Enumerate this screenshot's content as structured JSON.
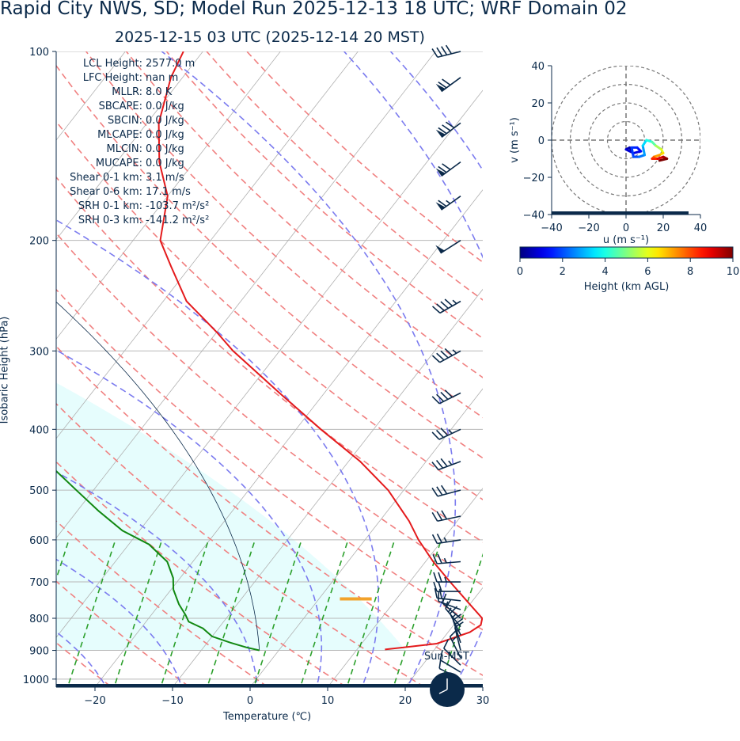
{
  "header": {
    "title": "Rapid City NWS, SD; Model Run 2025-12-13 18 UTC; WRF Domain 02",
    "subtitle": "2025-12-15 03 UTC  (2025-12-14 20 MST)"
  },
  "stats": [
    {
      "label": "LCL Height:",
      "value": "2577.0 m"
    },
    {
      "label": "LFC Height:",
      "value": "nan m"
    },
    {
      "label": "MLLR:",
      "value": "8.0 K"
    },
    {
      "label": "SBCAPE:",
      "value": "0.0 J/kg"
    },
    {
      "label": "SBCIN:",
      "value": "0.0 J/kg"
    },
    {
      "label": "MLCAPE:",
      "value": "0.0 J/kg"
    },
    {
      "label": "MLCIN:",
      "value": "0.0 J/kg"
    },
    {
      "label": "MUCAPE:",
      "value": "0.0 J/kg"
    },
    {
      "label": "Shear 0-1 km:",
      "value": "3.1 m/s"
    },
    {
      "label": "Shear 0-6 km:",
      "value": "17.1 m/s"
    },
    {
      "label": "SRH 0-1 km:",
      "value": "-103.7 m²/s²"
    },
    {
      "label": "SRH 0-3 km:",
      "value": "-141.2 m²/s²"
    }
  ],
  "sun_label": "Sun-MST",
  "colors": {
    "temperature": "#e41a1c",
    "dewpoint": "#118811",
    "dry_adiabat": "#f08080",
    "moist_adiabat": "#7b7bef",
    "mixing_ratio": "#2ca02c",
    "cloud_fill": "#e6fdfd",
    "isotherm": "#b0b0b0",
    "barb": "#0b2a4a",
    "lcl_marker": "#f2a22a"
  },
  "chart_data": [
    {
      "type": "skew-t",
      "xlabel": "Temperature (℃)",
      "ylabel": "Isobaric Height (hPa)",
      "xlim": [
        -25,
        30
      ],
      "ylim": [
        1030,
        100
      ],
      "log_y": true,
      "xticks": [
        -20,
        -10,
        0,
        10,
        20,
        30
      ],
      "yticks": [
        100,
        200,
        300,
        400,
        500,
        600,
        700,
        800,
        900,
        1000
      ],
      "grid": true,
      "temperature": {
        "p": [
          897,
          878,
          842,
          820,
          800,
          760,
          700,
          650,
          600,
          560,
          500,
          450,
          400,
          350,
          300,
          280,
          250,
          220,
          200,
          170,
          150,
          130,
          110,
          100
        ],
        "t": [
          13.6,
          19.7,
          22.8,
          23.5,
          23.0,
          20.0,
          15.2,
          11.0,
          6.9,
          3.8,
          -2.0,
          -8.5,
          -16.8,
          -25.8,
          -36.0,
          -40.0,
          -47.0,
          -52.5,
          -56.5,
          -60.0,
          -64.5,
          -68.5,
          -71.5,
          -72.5
        ]
      },
      "dewpoint": {
        "p": [
          900,
          890,
          875,
          855,
          830,
          810,
          790,
          760,
          720,
          690,
          650,
          610,
          580,
          540,
          500,
          450,
          400,
          360,
          320,
          300,
          260,
          220,
          200,
          190,
          180,
          170,
          160,
          150,
          130,
          110,
          100
        ],
        "t": [
          -2.5,
          -4.5,
          -7.0,
          -10.0,
          -12.0,
          -14.5,
          -15.6,
          -17.5,
          -19.7,
          -20.9,
          -23.3,
          -27.4,
          -32.2,
          -37.2,
          -42.2,
          -49.0,
          -57.0,
          -63.0,
          -69.0,
          -72.5,
          -78.5,
          -85.0,
          -89.0,
          -92.0,
          -95.5,
          -99.0,
          -101.0,
          -102.0,
          -102.0,
          -102.0,
          -102.0
        ]
      },
      "lcl_marker": {
        "p": 745,
        "t_start": 2.7,
        "t_end": 6.8
      },
      "wind_barbs": [
        {
          "p": 1000,
          "u": 4,
          "v": -2
        },
        {
          "p": 975,
          "u": 5,
          "v": -3
        },
        {
          "p": 950,
          "u": 4,
          "v": -4
        },
        {
          "p": 925,
          "u": 3,
          "v": -6
        },
        {
          "p": 900,
          "u": 2,
          "v": -8
        },
        {
          "p": 875,
          "u": 3,
          "v": -9
        },
        {
          "p": 850,
          "u": 4,
          "v": -8
        },
        {
          "p": 825,
          "u": 5,
          "v": -6
        },
        {
          "p": 800,
          "u": 6,
          "v": -5
        },
        {
          "p": 775,
          "u": 8,
          "v": -3
        },
        {
          "p": 750,
          "u": 9,
          "v": -1
        },
        {
          "p": 725,
          "u": 11,
          "v": 0
        },
        {
          "p": 700,
          "u": 12,
          "v": 0
        },
        {
          "p": 650,
          "u": 12,
          "v": 1
        },
        {
          "p": 600,
          "u": 13,
          "v": 2
        },
        {
          "p": 550,
          "u": 14,
          "v": 3
        },
        {
          "p": 500,
          "u": 15,
          "v": 4
        },
        {
          "p": 450,
          "u": 16,
          "v": 6
        },
        {
          "p": 400,
          "u": 17,
          "v": 8
        },
        {
          "p": 350,
          "u": 18,
          "v": 9
        },
        {
          "p": 300,
          "u": 20,
          "v": 11
        },
        {
          "p": 250,
          "u": 21,
          "v": 12
        },
        {
          "p": 200,
          "u": 22,
          "v": 14
        },
        {
          "p": 170,
          "u": 28,
          "v": 20
        },
        {
          "p": 150,
          "u": 30,
          "v": 22
        },
        {
          "p": 130,
          "u": 32,
          "v": 24
        },
        {
          "p": 110,
          "u": 30,
          "v": 22
        },
        {
          "p": 100,
          "u": 20,
          "v": 5
        }
      ]
    },
    {
      "type": "hodograph",
      "xlabel": "u (m s$^{-1}$)",
      "ylabel": "v (m s$^{-1}$)",
      "xlabel_display": "u (m s⁻¹)",
      "ylabel_display": "v (m s⁻¹)",
      "xlim": [
        -40,
        40
      ],
      "ylim": [
        -40,
        40
      ],
      "xticks": [
        -40,
        -20,
        0,
        20,
        40
      ],
      "yticks": [
        -40,
        -20,
        0,
        20,
        40
      ],
      "rings": [
        10,
        20,
        30,
        40
      ],
      "trace": [
        {
          "u": 3,
          "v": -6,
          "h": 0.1
        },
        {
          "u": 2,
          "v": -4,
          "h": 0.3
        },
        {
          "u": 0,
          "v": -5,
          "h": 0.5
        },
        {
          "u": 4,
          "v": -7,
          "h": 0.8
        },
        {
          "u": 8,
          "v": -6,
          "h": 1.0
        },
        {
          "u": 6,
          "v": -4,
          "h": 1.3
        },
        {
          "u": 3,
          "v": -4,
          "h": 1.6
        },
        {
          "u": 4,
          "v": -9,
          "h": 1.8
        },
        {
          "u": 7,
          "v": -9,
          "h": 2.0
        },
        {
          "u": 10,
          "v": -8,
          "h": 2.4
        },
        {
          "u": 9,
          "v": -3,
          "h": 2.8
        },
        {
          "u": 11,
          "v": 0,
          "h": 3.4
        },
        {
          "u": 14,
          "v": -1,
          "h": 4.0
        },
        {
          "u": 16,
          "v": -3,
          "h": 4.6
        },
        {
          "u": 19,
          "v": -5,
          "h": 5.4
        },
        {
          "u": 20,
          "v": -7,
          "h": 6.0
        },
        {
          "u": 18,
          "v": -8,
          "h": 6.6
        },
        {
          "u": 15,
          "v": -9,
          "h": 7.2
        },
        {
          "u": 14,
          "v": -10,
          "h": 7.8
        },
        {
          "u": 17,
          "v": -10,
          "h": 8.4
        },
        {
          "u": 20,
          "v": -9,
          "h": 9.0
        },
        {
          "u": 22,
          "v": -10,
          "h": 9.6
        },
        {
          "u": 18,
          "v": -11,
          "h": 10.0
        }
      ]
    },
    {
      "type": "colorbar",
      "label": "Height (km AGL)",
      "range": [
        0,
        10
      ],
      "ticks": [
        0,
        2,
        4,
        6,
        8,
        10
      ],
      "colormap": "jet"
    }
  ]
}
